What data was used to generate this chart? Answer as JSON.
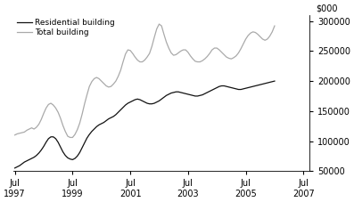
{
  "title": "",
  "ylabel_right": "$000",
  "ylim": [
    50000,
    310000
  ],
  "yticks": [
    50000,
    100000,
    150000,
    200000,
    250000,
    300000
  ],
  "xlim_start": 1997.45,
  "xlim_end": 2007.7,
  "xtick_years": [
    1997,
    1999,
    2001,
    2003,
    2005,
    2007
  ],
  "line_residential_color": "#111111",
  "line_total_color": "#aaaaaa",
  "background_color": "#ffffff",
  "legend_residential": "Residential building",
  "legend_total": "Total building",
  "residential": [
    55000,
    57000,
    59000,
    62000,
    65000,
    67000,
    69000,
    71000,
    73000,
    76000,
    80000,
    85000,
    91000,
    98000,
    104000,
    107000,
    107000,
    104000,
    98000,
    90000,
    82000,
    76000,
    72000,
    70000,
    69000,
    71000,
    75000,
    81000,
    89000,
    97000,
    105000,
    111000,
    116000,
    120000,
    124000,
    127000,
    129000,
    131000,
    134000,
    137000,
    139000,
    141000,
    144000,
    148000,
    152000,
    156000,
    160000,
    163000,
    165000,
    167000,
    169000,
    170000,
    169000,
    167000,
    165000,
    163000,
    162000,
    162000,
    163000,
    165000,
    167000,
    170000,
    173000,
    176000,
    178000,
    180000,
    181000,
    182000,
    182000,
    181000,
    180000,
    179000,
    178000,
    177000,
    176000,
    175000,
    175000,
    176000,
    177000,
    179000,
    181000,
    183000,
    185000,
    187000,
    189000,
    191000,
    192000,
    192000,
    191000,
    190000,
    189000,
    188000,
    187000,
    186000,
    186000,
    187000,
    188000,
    189000,
    190000,
    191000,
    192000,
    193000,
    194000,
    195000,
    196000,
    197000,
    198000,
    199000,
    200000
  ],
  "total": [
    110000,
    112000,
    113000,
    114000,
    115000,
    118000,
    120000,
    122000,
    120000,
    123000,
    128000,
    136000,
    146000,
    155000,
    161000,
    163000,
    160000,
    155000,
    148000,
    138000,
    126000,
    116000,
    108000,
    106000,
    106000,
    111000,
    119000,
    130000,
    145000,
    162000,
    177000,
    191000,
    199000,
    204000,
    206000,
    204000,
    200000,
    196000,
    192000,
    190000,
    191000,
    195000,
    200000,
    208000,
    218000,
    232000,
    245000,
    252000,
    251000,
    246000,
    240000,
    235000,
    232000,
    232000,
    235000,
    240000,
    246000,
    258000,
    273000,
    287000,
    295000,
    292000,
    278000,
    265000,
    255000,
    247000,
    243000,
    244000,
    247000,
    250000,
    252000,
    252000,
    248000,
    242000,
    237000,
    233000,
    232000,
    232000,
    234000,
    237000,
    241000,
    246000,
    252000,
    255000,
    255000,
    252000,
    248000,
    244000,
    240000,
    238000,
    237000,
    239000,
    242000,
    247000,
    254000,
    262000,
    270000,
    276000,
    280000,
    282000,
    281000,
    278000,
    274000,
    270000,
    268000,
    270000,
    275000,
    282000,
    292000
  ]
}
